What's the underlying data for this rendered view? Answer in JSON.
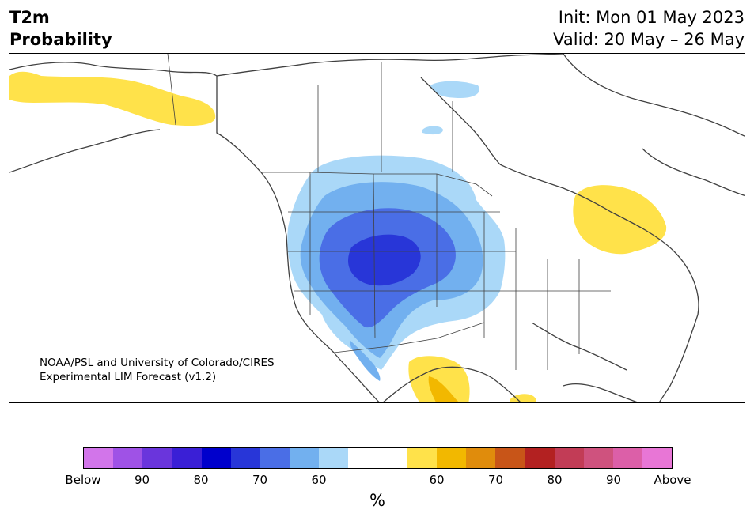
{
  "header": {
    "title_line1": "T2m",
    "title_line2": "Probability",
    "init": "Init: Mon 01 May 2023",
    "valid": "Valid: 20 May – 26 May"
  },
  "map": {
    "credit_line1": "NOAA/PSL and University of Colorado/CIRES",
    "credit_line2": "Experimental LIM Forecast (v1.2)",
    "colors": {
      "below_50": "#aad8f8",
      "below_60": "#72b0ef",
      "below_70": "#4a6ee6",
      "below_80": "#2836d8",
      "above_50": "#ffe24a",
      "above_60": "#f2b800",
      "coastline": "#404040"
    }
  },
  "colorbar": {
    "colors": [
      "#d275ea",
      "#9f52e6",
      "#6a35dc",
      "#3a1fd6",
      "#0000cc",
      "#2836d8",
      "#4a6ee6",
      "#72b0ef",
      "#aad8f8",
      "#ffffff",
      "#ffffff",
      "#ffe24a",
      "#f2b800",
      "#e08c0c",
      "#c85518",
      "#b32121",
      "#c23c56",
      "#cf527e",
      "#dc5fa8",
      "#e876d6"
    ],
    "tick_labels": [
      "Below",
      "90",
      "80",
      "70",
      "60",
      "60",
      "70",
      "80",
      "90",
      "Above"
    ],
    "unit": "%"
  }
}
